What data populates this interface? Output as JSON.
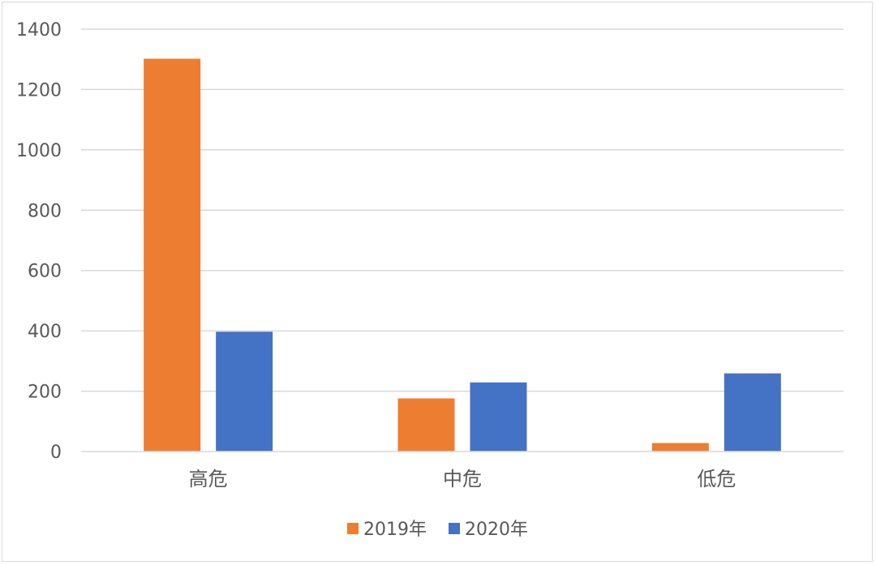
{
  "chart_data": {
    "type": "bar",
    "categories": [
      "高危",
      "中危",
      "低危"
    ],
    "series": [
      {
        "name": "2019年",
        "values": [
          1302,
          176,
          28
        ],
        "color": "#ED7D31"
      },
      {
        "name": "2020年",
        "values": [
          397,
          229,
          259
        ],
        "color": "#4472C4"
      }
    ],
    "ylim": [
      0,
      1400
    ],
    "yticks": [
      0,
      200,
      400,
      600,
      800,
      1000,
      1200,
      1400
    ],
    "ytick_labels": [
      "0",
      "200",
      "400",
      "600",
      "800",
      "1000",
      "1200",
      "1400"
    ],
    "grid": true,
    "legend_position": "bottom",
    "title": "",
    "xlabel": "",
    "ylabel": ""
  }
}
